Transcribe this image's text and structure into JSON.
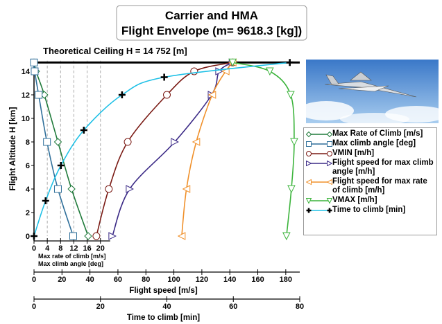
{
  "chart_data": {
    "type": "line",
    "title": [
      "Carrier and HMA",
      "Flight Envelope (m= 9618.3 [kg])"
    ],
    "annotation": "Theoretical Ceiling H = 14 752 [m]",
    "ceiling": 14.752,
    "y_label": "Flight Altitude H [km]",
    "ylim": [
      0,
      14.9
    ],
    "yticks": [
      0,
      2,
      4,
      6,
      8,
      10,
      12,
      14
    ],
    "grid": true,
    "xaxes": [
      {
        "labels": [
          "Max rate of climb [m/s]",
          "Max climb angle [deg]"
        ],
        "xlim": [
          0,
          80
        ],
        "xticks": [
          0,
          4,
          8,
          12,
          16,
          20
        ]
      },
      {
        "label": "Flight speed [m/s]",
        "xlim": [
          0,
          190
        ],
        "xticks": [
          0,
          20,
          40,
          60,
          80,
          100,
          120,
          140,
          160,
          180
        ]
      },
      {
        "label": "Time to climb [min]",
        "xlim": [
          0,
          80
        ],
        "xticks": [
          0,
          20,
          40,
          60,
          80
        ]
      }
    ],
    "series": [
      {
        "name": "Max Rate of Climb [m/s]",
        "color": "#1f7a3a",
        "marker": "diamond",
        "xaxis": 0,
        "x": [
          16.3,
          11.3,
          7.2,
          3.1,
          0.6,
          0
        ],
        "y": [
          0,
          4,
          8,
          12,
          14,
          14.752
        ]
      },
      {
        "name": "Max climb angle [deg]",
        "color": "#2f6f9a",
        "marker": "square",
        "xaxis": 0,
        "x": [
          11.8,
          7.2,
          3.9,
          1.4,
          0.2,
          0
        ],
        "y": [
          0,
          4,
          8,
          12,
          14,
          14.752
        ]
      },
      {
        "name": "VMIN [m/h]",
        "color": "#7a1a14",
        "marker": "circle",
        "xaxis": 1,
        "x": [
          44.6,
          53.5,
          67,
          95,
          114.5,
          142
        ],
        "y": [
          0,
          4,
          8,
          12,
          14,
          14.752
        ]
      },
      {
        "name": "Flight speed for max climb angle [m/h]",
        "color": "#3b2a86",
        "marker": "tri-right",
        "xaxis": 1,
        "x": [
          56,
          68.4,
          100.6,
          127,
          132.4,
          142
        ],
        "y": [
          0,
          4,
          8,
          12,
          14,
          14.752
        ]
      },
      {
        "name": "Flight speed for max rate of climb [m/h]",
        "color": "#f0902a",
        "marker": "tri-left",
        "xaxis": 1,
        "x": [
          105.6,
          109,
          116,
          127.4,
          137,
          142
        ],
        "y": [
          0,
          4,
          8,
          12,
          14,
          14.752
        ]
      },
      {
        "name": "VMAX [m/h]",
        "color": "#3cb43c",
        "marker": "tri-down",
        "xaxis": 1,
        "x": [
          180.5,
          184,
          186,
          183.5,
          168.6,
          142
        ],
        "y": [
          0,
          4,
          8,
          12,
          14,
          14.752
        ]
      },
      {
        "name": "Time to climb [min]",
        "color": "#1ec0e6",
        "marker": "plus",
        "xaxis": 2,
        "x": [
          0,
          3.5,
          8.1,
          15,
          26.5,
          39.2,
          77
        ],
        "y": [
          0,
          3,
          6,
          9,
          12,
          13.5,
          14.752
        ]
      }
    ]
  }
}
